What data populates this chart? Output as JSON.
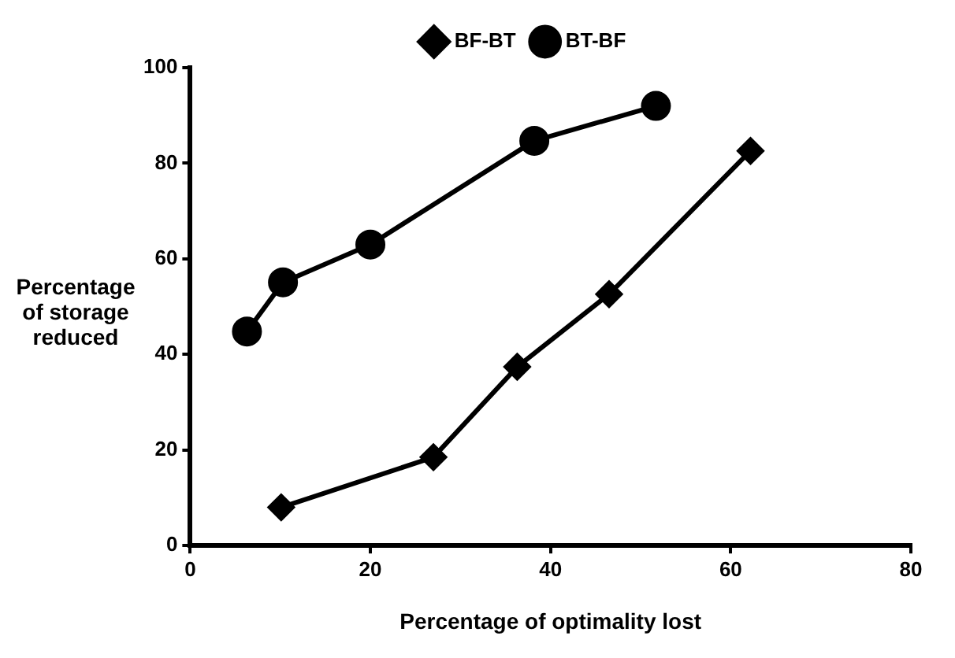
{
  "chart_data": {
    "type": "line",
    "xlabel": "Percentage of optimality lost",
    "ylabel": "Percentage of storage reduced",
    "xlim": [
      0,
      80
    ],
    "xticks": [
      0,
      20,
      40,
      60,
      80
    ],
    "ylim": [
      0,
      100
    ],
    "yticks": [
      0,
      20,
      40,
      60,
      80,
      100
    ],
    "grid": false,
    "legend": "top",
    "series": [
      {
        "name": "BF-BT",
        "color": "#000000",
        "marker": "diamond",
        "x": [
          10.1,
          27.0,
          36.3,
          46.5,
          62.2
        ],
        "values": [
          8.0,
          18.5,
          37.4,
          52.6,
          82.6
        ]
      },
      {
        "name": "BT-BF",
        "color": "#000000",
        "marker": "circle",
        "x": [
          6.3,
          10.3,
          20.0,
          38.2,
          51.7
        ],
        "values": [
          44.8,
          55.1,
          63.0,
          84.7,
          92.0
        ]
      }
    ]
  }
}
